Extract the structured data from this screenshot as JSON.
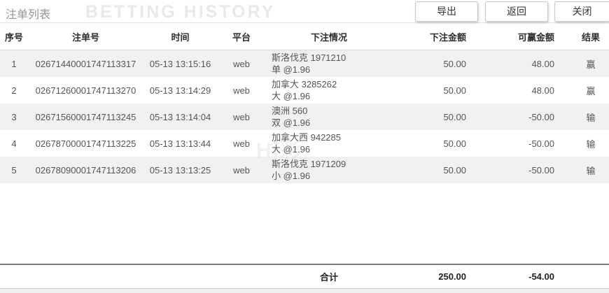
{
  "page": {
    "title": "注单列表",
    "watermark_top": "BETTING HISTORY",
    "watermark_center": "Hi彩"
  },
  "toolbar": {
    "export_label": "导出",
    "back_label": "返回",
    "close_label": "关闭"
  },
  "table": {
    "columns": [
      "序号",
      "注单号",
      "时间",
      "平台",
      "下注情况",
      "下注金额",
      "可赢金额",
      "结果"
    ],
    "rows": [
      {
        "index": "1",
        "bet_no": "02671440001747113317",
        "time": "05-13 13:15:16",
        "platform": "web",
        "detail_line1": "斯洛伐克 1971210",
        "detail_line2": "单 @1.96",
        "bet_amount": "50.00",
        "win_amount": "48.00",
        "result": "赢"
      },
      {
        "index": "2",
        "bet_no": "02671260001747113270",
        "time": "05-13 13:14:29",
        "platform": "web",
        "detail_line1": "加拿大 3285262",
        "detail_line2": "大 @1.96",
        "bet_amount": "50.00",
        "win_amount": "48.00",
        "result": "赢"
      },
      {
        "index": "3",
        "bet_no": "02671560001747113245",
        "time": "05-13 13:14:04",
        "platform": "web",
        "detail_line1": "澳洲 560",
        "detail_line2": "双 @1.96",
        "bet_amount": "50.00",
        "win_amount": "-50.00",
        "result": "输"
      },
      {
        "index": "4",
        "bet_no": "02678700001747113225",
        "time": "05-13 13:13:44",
        "platform": "web",
        "detail_line1": "加拿大西 942285",
        "detail_line2": "大 @1.96",
        "bet_amount": "50.00",
        "win_amount": "-50.00",
        "result": "输"
      },
      {
        "index": "5",
        "bet_no": "02678090001747113206",
        "time": "05-13 13:13:25",
        "platform": "web",
        "detail_line1": "斯洛伐克 1971209",
        "detail_line2": "小 @1.96",
        "bet_amount": "50.00",
        "win_amount": "-50.00",
        "result": "输"
      }
    ],
    "footer": {
      "total_label": "合计",
      "total_bet_amount": "250.00",
      "total_win_amount": "-54.00"
    }
  },
  "colors": {
    "row_stripe": "#f1f1f1",
    "footer_top_border": "#7e7e7e",
    "watermark": "#e9e9e9",
    "title_text": "#949494"
  }
}
